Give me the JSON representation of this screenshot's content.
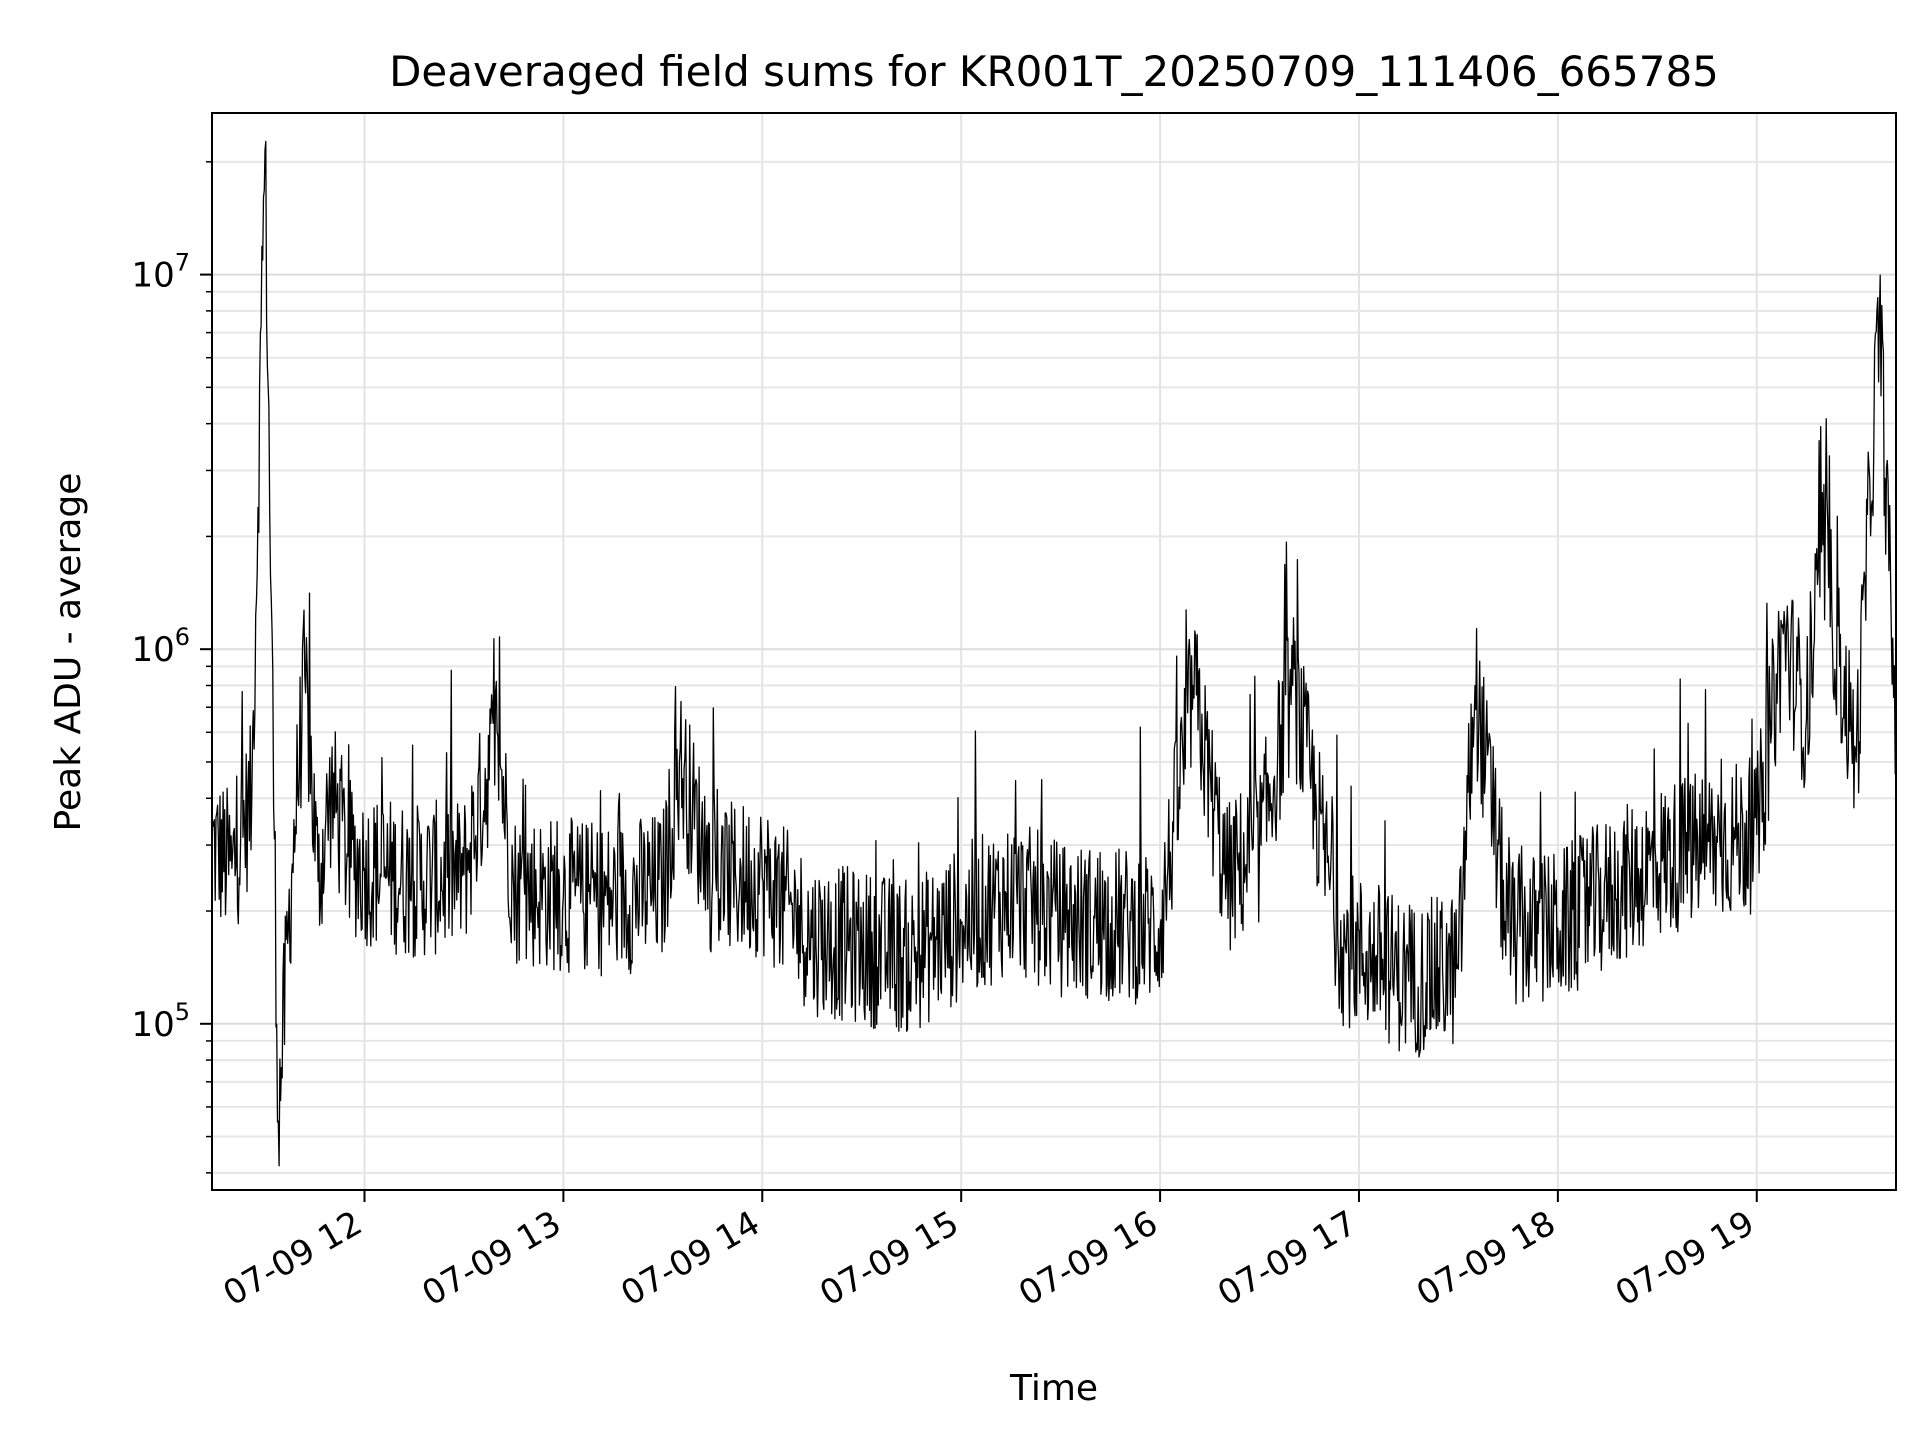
{
  "chart_data": {
    "type": "line",
    "title": "Deaveraged field sums for KR001T_20250709_111406_665785",
    "xlabel": "Time",
    "ylabel": "Peak ADU - average",
    "y_scale": "log",
    "ylim": [
      36000,
      27000000
    ],
    "xlim": [
      "2025-07-09 11:14",
      "2025-07-09 19:42"
    ],
    "grid": true,
    "x_ticks": [
      {
        "t": "2025-07-09 12:00",
        "label": "07-09 12"
      },
      {
        "t": "2025-07-09 13:00",
        "label": "07-09 13"
      },
      {
        "t": "2025-07-09 14:00",
        "label": "07-09 14"
      },
      {
        "t": "2025-07-09 15:00",
        "label": "07-09 15"
      },
      {
        "t": "2025-07-09 16:00",
        "label": "07-09 16"
      },
      {
        "t": "2025-07-09 17:00",
        "label": "07-09 17"
      },
      {
        "t": "2025-07-09 18:00",
        "label": "07-09 18"
      },
      {
        "t": "2025-07-09 19:00",
        "label": "07-09 19"
      }
    ],
    "y_ticks": [
      {
        "value": 100000,
        "base": "10",
        "exp": "5"
      },
      {
        "value": 1000000,
        "base": "10",
        "exp": "6"
      },
      {
        "value": 10000000,
        "base": "10",
        "exp": "7"
      }
    ],
    "series_color": "#000000",
    "series": [
      {
        "x": [
          "2025-07-09 11:14",
          "2025-07-09 11:20",
          "2025-07-09 11:26",
          "2025-07-09 11:30",
          "2025-07-09 11:34",
          "2025-07-09 11:38",
          "2025-07-09 11:42",
          "2025-07-09 11:46",
          "2025-07-09 11:50",
          "2025-07-09 11:55",
          "2025-07-09 12:00",
          "2025-07-09 12:15",
          "2025-07-09 12:30",
          "2025-07-09 12:40",
          "2025-07-09 12:45",
          "2025-07-09 13:00",
          "2025-07-09 13:15",
          "2025-07-09 13:30",
          "2025-07-09 13:35",
          "2025-07-09 13:45",
          "2025-07-09 14:00",
          "2025-07-09 14:15",
          "2025-07-09 14:30",
          "2025-07-09 14:45",
          "2025-07-09 15:00",
          "2025-07-09 15:15",
          "2025-07-09 15:30",
          "2025-07-09 15:45",
          "2025-07-09 16:00",
          "2025-07-09 16:10",
          "2025-07-09 16:20",
          "2025-07-09 16:30",
          "2025-07-09 16:40",
          "2025-07-09 16:55",
          "2025-07-09 17:05",
          "2025-07-09 17:15",
          "2025-07-09 17:30",
          "2025-07-09 17:35",
          "2025-07-09 17:45",
          "2025-07-09 18:00",
          "2025-07-09 18:15",
          "2025-07-09 18:30",
          "2025-07-09 18:45",
          "2025-07-09 19:00",
          "2025-07-09 19:08",
          "2025-07-09 19:15",
          "2025-07-09 19:20",
          "2025-07-09 19:25",
          "2025-07-09 19:30",
          "2025-07-09 19:37",
          "2025-07-09 19:42"
        ],
        "y": [
          300000,
          260000,
          400000,
          21500000,
          55000,
          250000,
          850000,
          240000,
          420000,
          280000,
          260000,
          240000,
          250000,
          600000,
          230000,
          220000,
          215000,
          230000,
          500000,
          240000,
          245000,
          170000,
          160000,
          150000,
          185000,
          220000,
          190000,
          185000,
          180000,
          800000,
          240000,
          300000,
          800000,
          160000,
          150000,
          130000,
          140000,
          800000,
          175000,
          180000,
          220000,
          270000,
          300000,
          320000,
          1100000,
          650000,
          1900000,
          900000,
          500000,
          7800000,
          560000
        ]
      }
    ]
  }
}
